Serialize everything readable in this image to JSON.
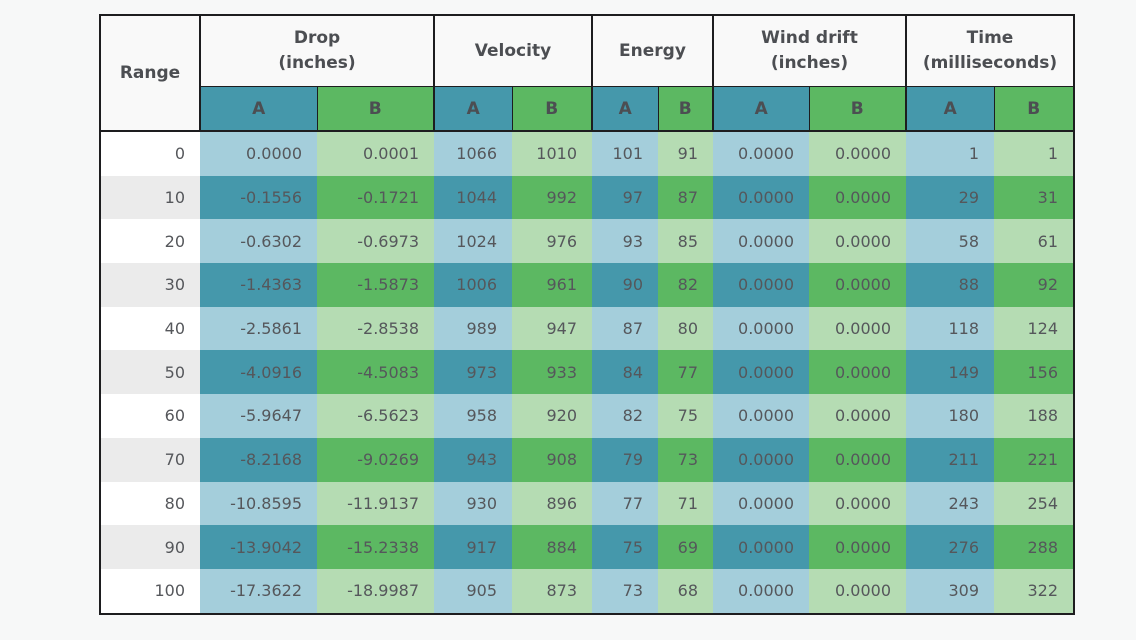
{
  "colors": {
    "series_a": "#4598ab",
    "series_a_light": "#a4cedb",
    "series_b": "#5cb862",
    "series_b_light": "#b5dcb3",
    "row_alt_gray": "#ebebeb",
    "row_white": "#ffffff",
    "border": "#1d1d1f",
    "text": "#55575b",
    "header_text": "#4c4e52",
    "header_bg": "#f9f9f9",
    "page_bg": "#f7f8f8"
  },
  "chart_data": {
    "type": "table",
    "series": [
      "A",
      "B"
    ],
    "column_groups": [
      {
        "label": "Range",
        "subcolumns": []
      },
      {
        "label": "Drop\n(inches)",
        "subcolumns": [
          "A",
          "B"
        ]
      },
      {
        "label": "Velocity",
        "subcolumns": [
          "A",
          "B"
        ]
      },
      {
        "label": "Energy",
        "subcolumns": [
          "A",
          "B"
        ]
      },
      {
        "label": "Wind drift\n(inches)",
        "subcolumns": [
          "A",
          "B"
        ]
      },
      {
        "label": "Time\n(milliseconds)",
        "subcolumns": [
          "A",
          "B"
        ]
      }
    ],
    "row_keys": [
      "range",
      "drop-a",
      "drop-b",
      "velocity-a",
      "velocity-b",
      "energy-a",
      "energy-b",
      "wind-drift-a",
      "wind-drift-b",
      "time-a",
      "time-b"
    ],
    "rows": [
      [
        "0",
        "0.0000",
        "0.0001",
        "1066",
        "1010",
        "101",
        "91",
        "0.0000",
        "0.0000",
        "1",
        "1"
      ],
      [
        "10",
        "-0.1556",
        "-0.1721",
        "1044",
        "992",
        "97",
        "87",
        "0.0000",
        "0.0000",
        "29",
        "31"
      ],
      [
        "20",
        "-0.6302",
        "-0.6973",
        "1024",
        "976",
        "93",
        "85",
        "0.0000",
        "0.0000",
        "58",
        "61"
      ],
      [
        "30",
        "-1.4363",
        "-1.5873",
        "1006",
        "961",
        "90",
        "82",
        "0.0000",
        "0.0000",
        "88",
        "92"
      ],
      [
        "40",
        "-2.5861",
        "-2.8538",
        "989",
        "947",
        "87",
        "80",
        "0.0000",
        "0.0000",
        "118",
        "124"
      ],
      [
        "50",
        "-4.0916",
        "-4.5083",
        "973",
        "933",
        "84",
        "77",
        "0.0000",
        "0.0000",
        "149",
        "156"
      ],
      [
        "60",
        "-5.9647",
        "-6.5623",
        "958",
        "920",
        "82",
        "75",
        "0.0000",
        "0.0000",
        "180",
        "188"
      ],
      [
        "70",
        "-8.2168",
        "-9.0269",
        "943",
        "908",
        "79",
        "73",
        "0.0000",
        "0.0000",
        "211",
        "221"
      ],
      [
        "80",
        "-10.8595",
        "-11.9137",
        "930",
        "896",
        "77",
        "71",
        "0.0000",
        "0.0000",
        "243",
        "254"
      ],
      [
        "90",
        "-13.9042",
        "-15.2338",
        "917",
        "884",
        "75",
        "69",
        "0.0000",
        "0.0000",
        "276",
        "288"
      ],
      [
        "100",
        "-17.3622",
        "-18.9987",
        "905",
        "873",
        "73",
        "68",
        "0.0000",
        "0.0000",
        "309",
        "322"
      ]
    ]
  }
}
